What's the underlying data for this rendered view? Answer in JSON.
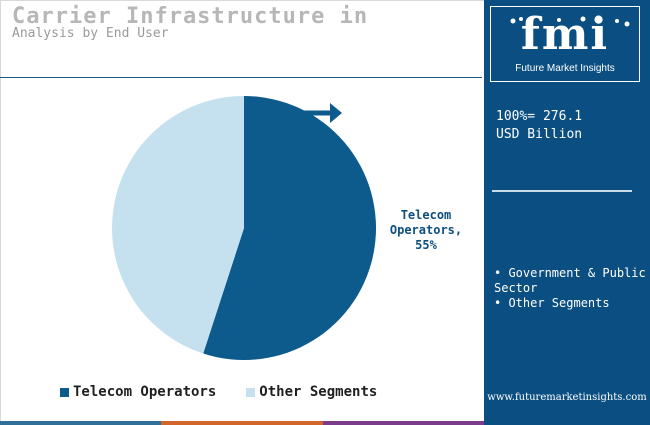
{
  "header": {
    "title": "Carrier Infrastructure in",
    "subtitle": "Analysis by End User"
  },
  "chart_data": {
    "type": "pie",
    "title": "Carrier Infrastructure in",
    "subtitle": "Analysis by End User",
    "slices": [
      {
        "label": "Telecom Operators",
        "value": 55,
        "color": "#0d5a8c"
      },
      {
        "label": "Other Segments",
        "value": 45,
        "color": "#c5e1f0"
      }
    ],
    "data_label": {
      "line1": "Telecom",
      "line2": "Operators,",
      "line3": "55%"
    },
    "legend": {
      "position": "bottom",
      "items": [
        {
          "label": "Telecom Operators",
          "color": "#0d5a8c"
        },
        {
          "label": "Other Segments",
          "color": "#c5e1f0"
        }
      ]
    },
    "colors": {
      "accent": "#0b4f82",
      "arrow": "#0d5a8c"
    }
  },
  "panel": {
    "logo": "fmi",
    "logo_tagline": "Future Market Insights",
    "total_line1": "100%= 276.1",
    "total_line2": "USD Billion",
    "segments": [
      "Government & Public Sector",
      "Other Segments"
    ],
    "website": "www.futuremarketinsights.com",
    "background": "#0b4f82"
  },
  "bottom_bar_colors": [
    "#2f6f98",
    "#d2662a",
    "#7b3c8c"
  ]
}
